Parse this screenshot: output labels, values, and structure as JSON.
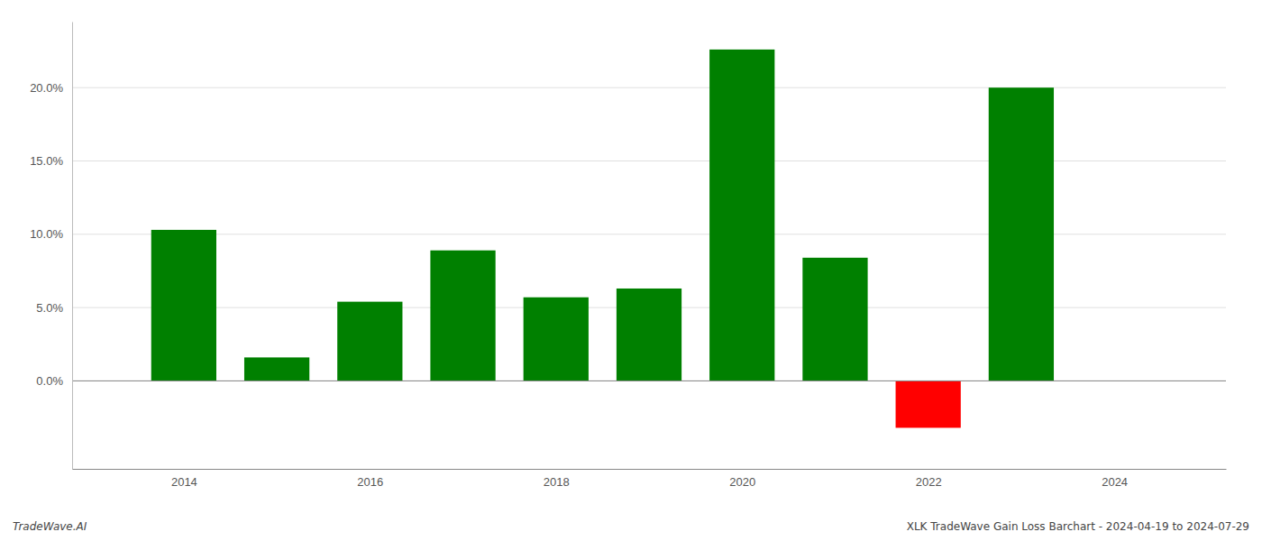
{
  "chart_data": {
    "type": "bar",
    "x": [
      2014,
      2015,
      2016,
      2017,
      2018,
      2019,
      2020,
      2021,
      2022,
      2023
    ],
    "values": [
      0.103,
      0.016,
      0.054,
      0.089,
      0.057,
      0.063,
      0.226,
      0.084,
      -0.032,
      0.2
    ],
    "colors": [
      "#008000",
      "#008000",
      "#008000",
      "#008000",
      "#008000",
      "#008000",
      "#008000",
      "#008000",
      "#ff0000",
      "#008000"
    ],
    "xlim": [
      2012.8,
      2025.2
    ],
    "xticks": [
      2014,
      2016,
      2018,
      2020,
      2022,
      2024
    ],
    "ylim": [
      -0.06,
      0.245
    ],
    "yticks": [
      {
        "value": 0.0,
        "label": "0.0%"
      },
      {
        "value": 0.05,
        "label": "5.0%"
      },
      {
        "value": 0.1,
        "label": "10.0%"
      },
      {
        "value": 0.15,
        "label": "15.0%"
      },
      {
        "value": 0.2,
        "label": "20.0%"
      }
    ],
    "grid": true,
    "annotations": [
      "TradeWave.AI",
      "XLK TradeWave Gain Loss Barchart - 2024-04-19 to 2024-07-29"
    ]
  }
}
